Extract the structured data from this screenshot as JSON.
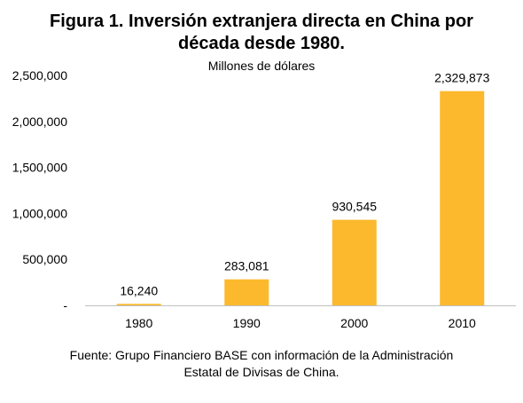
{
  "chart_data": {
    "type": "bar",
    "title_line1": "Figura 1. Inversión extranjera directa en China por",
    "title_line2": "década desde 1980.",
    "subtitle": "Millones de dólares",
    "categories": [
      "1980",
      "1990",
      "2000",
      "2010"
    ],
    "values": [
      16240,
      283081,
      930545,
      2329873
    ],
    "data_labels": [
      "16,240",
      "283,081",
      "930,545",
      "2,329,873"
    ],
    "y_ticks": [
      0,
      500000,
      1000000,
      1500000,
      2000000,
      2500000
    ],
    "y_tick_labels": [
      "-",
      "500,000",
      "1,000,000",
      "1,500,000",
      "2,000,000",
      "2,500,000"
    ],
    "ylim": [
      0,
      2500000
    ],
    "grid": false,
    "bar_color": "#FDB92D",
    "axis_color": "#BFBFBF",
    "source_line1": "Fuente: Grupo Financiero BASE con información de la Administración",
    "source_line2": "Estatal de Divisas de China."
  }
}
